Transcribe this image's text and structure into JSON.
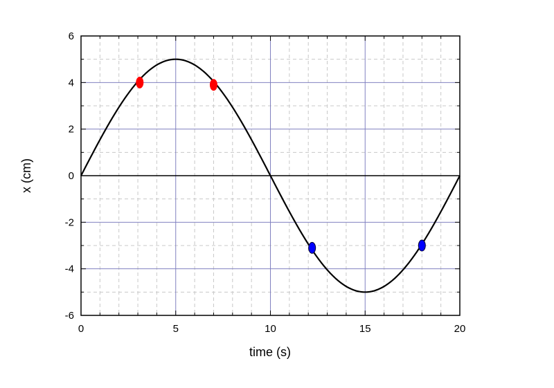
{
  "chart_data": {
    "type": "line",
    "title": "",
    "xlabel": "time (s)",
    "ylabel": "x (cm)",
    "xlim": [
      0,
      20
    ],
    "ylim": [
      -6,
      6
    ],
    "x_ticks": [
      0,
      5,
      10,
      15,
      20
    ],
    "y_ticks": [
      6,
      4,
      2,
      0,
      -2,
      -4,
      -6
    ],
    "x_tick_labels": [
      "0",
      "5",
      "10",
      "15",
      "20"
    ],
    "y_tick_labels": [
      "6",
      "4",
      "2",
      "0",
      "-2",
      "-4",
      "-6"
    ],
    "grid": true,
    "series": [
      {
        "function": "x = 5 sin(2π t / 20)",
        "amplitude": 5,
        "period": 20,
        "color": "#000000",
        "t_range": [
          0,
          20
        ]
      }
    ],
    "markers": [
      {
        "t": 3.1,
        "x": 4.0,
        "color": "#ff0000"
      },
      {
        "t": 7.0,
        "x": 3.9,
        "color": "#ff0000"
      },
      {
        "t": 12.2,
        "x": -3.1,
        "color": "#0000ff"
      },
      {
        "t": 18.0,
        "x": -3.0,
        "color": "#0000ff"
      }
    ],
    "colors": {
      "major_grid": "#8080c0",
      "minor_grid": "#c8c8c8",
      "curve": "#000000",
      "frame": "#000000"
    }
  }
}
